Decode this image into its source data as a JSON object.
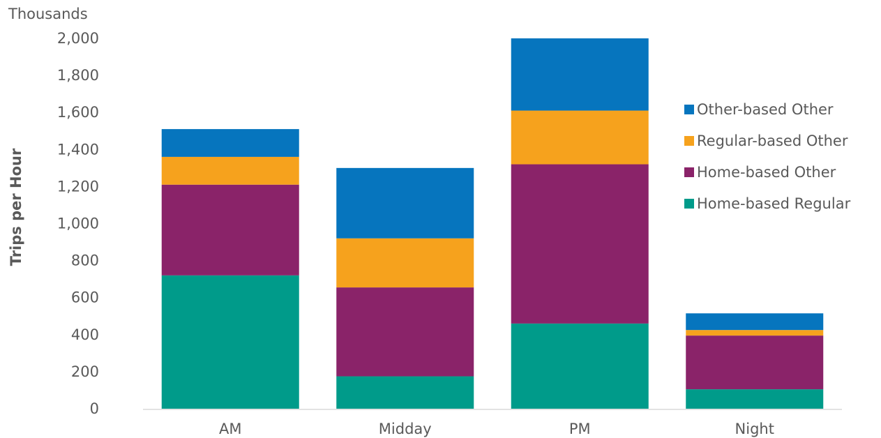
{
  "chart_data": {
    "type": "bar",
    "stacked": true,
    "ylabel": "Trips per Hour",
    "unit_label": "Thousands",
    "categories": [
      "AM",
      "Midday",
      "PM",
      "Night"
    ],
    "ylim": [
      0,
      2000
    ],
    "yticks": [
      0,
      200,
      400,
      600,
      800,
      1000,
      1200,
      1400,
      1600,
      1800,
      2000
    ],
    "ytick_labels": [
      "0",
      "200",
      "400",
      "600",
      "800",
      "1,000",
      "1,200",
      "1,400",
      "1,600",
      "1,800",
      "2,000"
    ],
    "grid": false,
    "legend_position": "right",
    "series": [
      {
        "name": "Home-based Regular",
        "color": "#009B8A",
        "values": [
          720,
          175,
          460,
          105
        ]
      },
      {
        "name": "Home-based Other",
        "color": "#8A2369",
        "values": [
          490,
          480,
          860,
          290
        ]
      },
      {
        "name": "Regular-based Other",
        "color": "#F6A21D",
        "values": [
          150,
          265,
          290,
          30
        ]
      },
      {
        "name": "Other-based Other",
        "color": "#0675BE",
        "values": [
          150,
          380,
          390,
          90
        ]
      }
    ]
  }
}
